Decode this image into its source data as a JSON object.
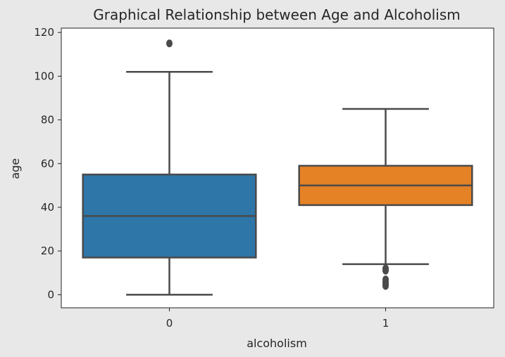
{
  "chart_data": {
    "type": "box",
    "title": "Graphical Relationship between Age and Alcoholism",
    "xlabel": "alcoholism",
    "ylabel": "age",
    "categories": [
      "0",
      "1"
    ],
    "ylim": [
      -6,
      122
    ],
    "yticks": [
      0,
      20,
      40,
      60,
      80,
      100,
      120
    ],
    "grid": false,
    "colors": [
      "#2e75a8",
      "#e68226"
    ],
    "boxes": [
      {
        "category": "0",
        "whisker_low": 0,
        "q1": 17,
        "median": 36,
        "q3": 55,
        "whisker_high": 102,
        "outliers": [
          115
        ]
      },
      {
        "category": "1",
        "whisker_low": 14,
        "q1": 41,
        "median": 50,
        "q3": 59,
        "whisker_high": 85,
        "outliers": [
          4,
          5,
          6,
          7,
          11,
          12
        ]
      }
    ]
  }
}
